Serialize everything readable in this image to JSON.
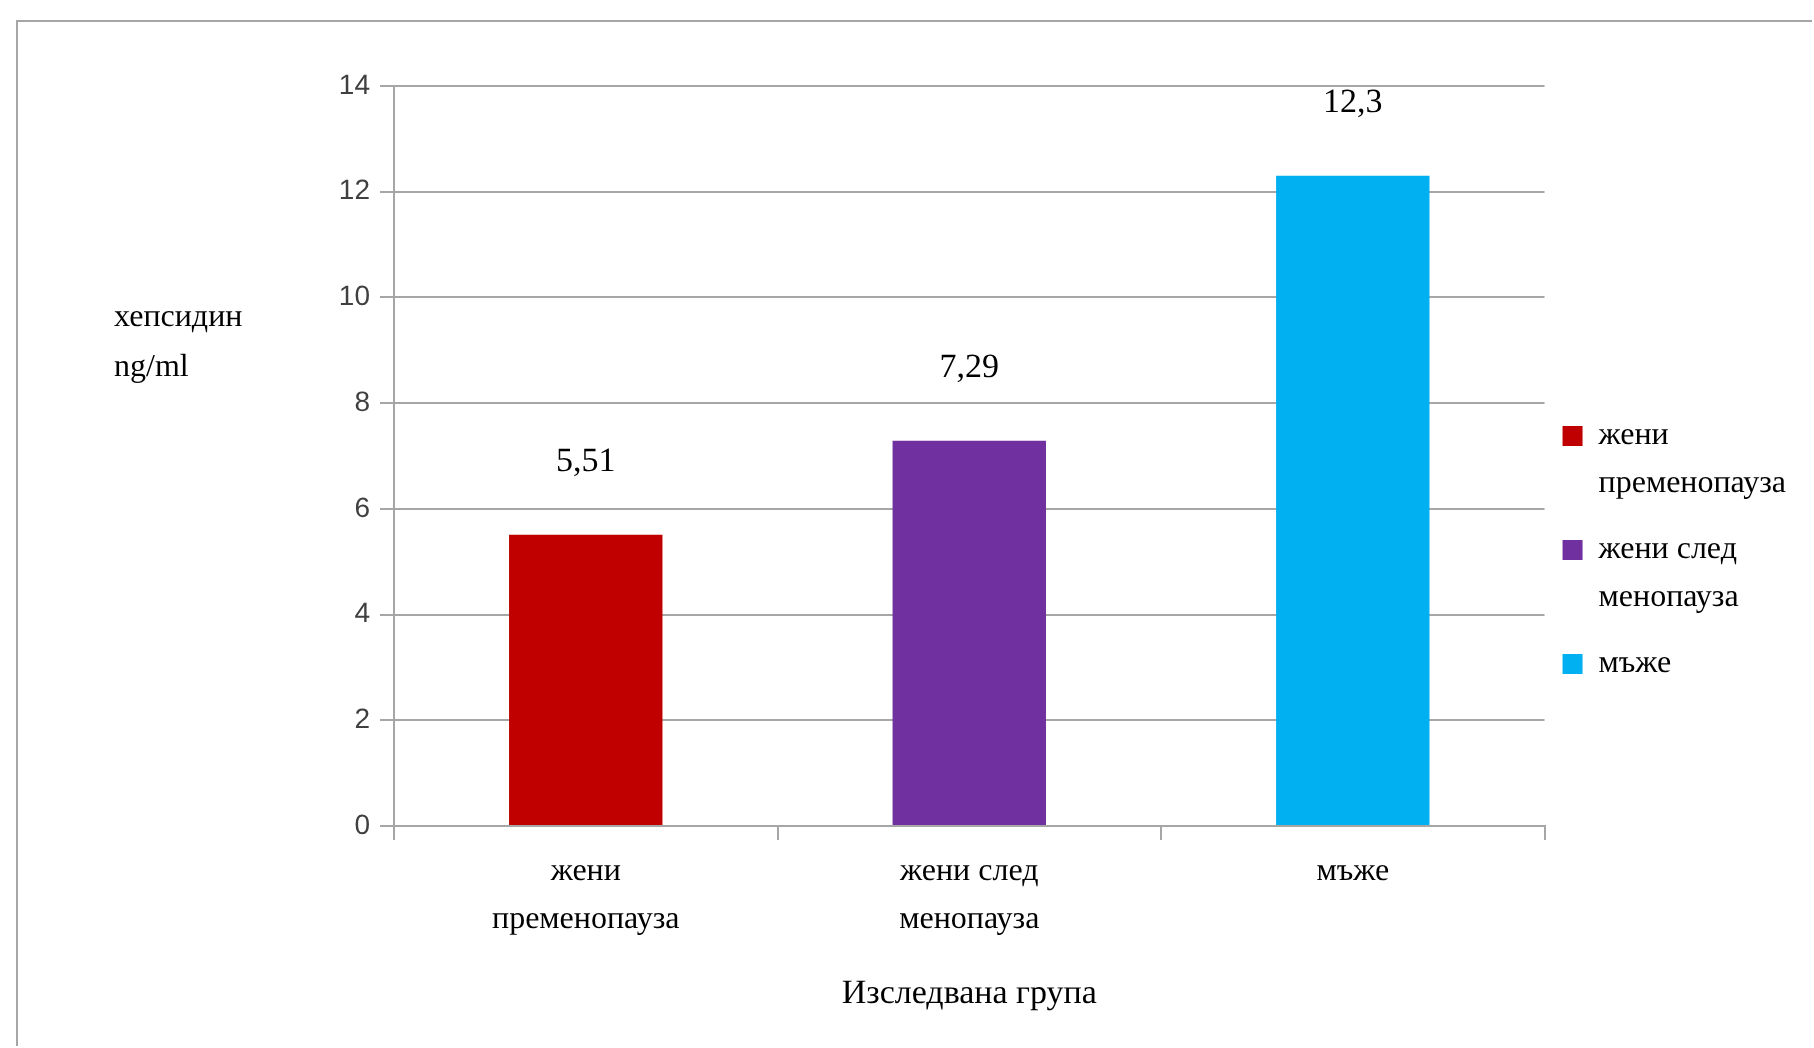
{
  "chart_data": {
    "type": "bar",
    "xlabel": "Изследвана група",
    "ylabel": "хепсидин ng/ml",
    "categories": [
      "жени пременопауза",
      "жени след менопауза",
      "мъже"
    ],
    "series": [
      {
        "name": "жени пременопауза",
        "color": "#c00000",
        "values": [
          5.51,
          null,
          null
        ],
        "value_labels": [
          "5,51",
          null,
          null
        ]
      },
      {
        "name": "жени след менопауза",
        "color": "#7030a0",
        "values": [
          null,
          7.29,
          null
        ],
        "value_labels": [
          null,
          "7,29",
          null
        ]
      },
      {
        "name": "мъже",
        "color": "#00b0f0",
        "values": [
          null,
          null,
          12.3
        ],
        "value_labels": [
          null,
          null,
          "12,3"
        ]
      }
    ],
    "ylim": [
      0,
      14
    ],
    "yticks": [
      0,
      2,
      4,
      6,
      8,
      10,
      12,
      14
    ],
    "grid": "y",
    "legend": "right"
  }
}
